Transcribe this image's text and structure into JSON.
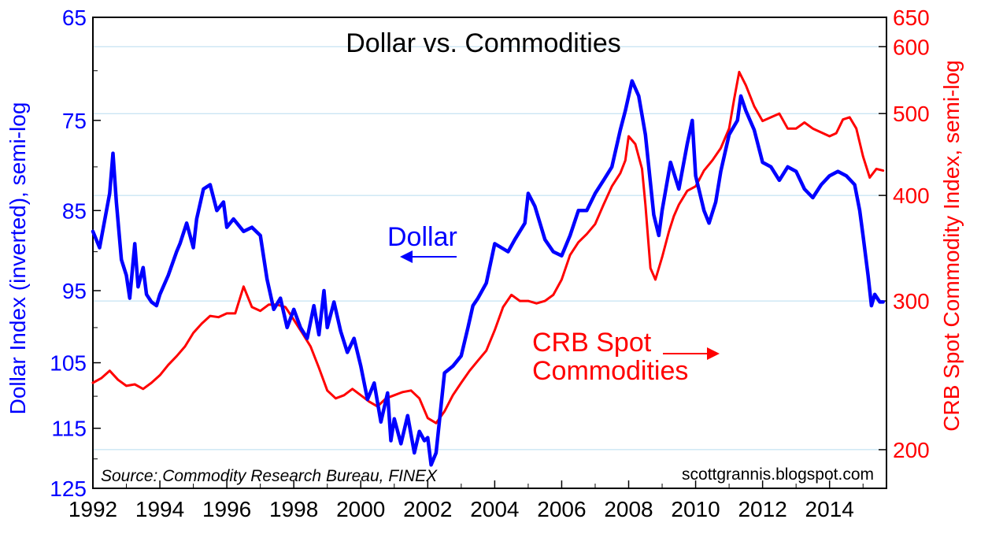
{
  "chart_data": {
    "type": "line",
    "title": "Dollar vs. Commodities",
    "source_note": "Source: Commodity Research Bureau, FINEX",
    "site": "scottgrannis.blogspot.com",
    "x_ticks": [
      "1992",
      "1994",
      "1996",
      "1998",
      "2000",
      "2002",
      "2004",
      "2006",
      "2008",
      "2010",
      "2012",
      "2014"
    ],
    "xlim": [
      1992.0,
      2015.7
    ],
    "grid": true,
    "left_axis": {
      "label": "Dollar Index (inverted), semi-log",
      "inverted": true,
      "scale": "log",
      "lim": [
        65,
        125
      ],
      "ticks": [
        "65",
        "75",
        "85",
        "95",
        "105",
        "115",
        "125"
      ],
      "color": "#0000ff"
    },
    "right_axis": {
      "label": "CRB Spot Commodity Index, semi-log",
      "scale": "log",
      "lim": [
        180,
        650
      ],
      "ticks": [
        "200",
        "300",
        "400",
        "500",
        "600",
        "650"
      ],
      "color": "#ff0000"
    },
    "annotations": [
      {
        "text": "Dollar",
        "color": "#0000ff",
        "arrow": "left"
      },
      {
        "text_line1": "CRB Spot",
        "text_line2": "Commodities",
        "color": "#ff0000",
        "arrow": "right"
      }
    ],
    "series": [
      {
        "name": "Dollar",
        "axis": "left",
        "color": "#0000ff",
        "x": [
          1992.0,
          1992.2,
          1992.5,
          1992.6,
          1992.7,
          1992.85,
          1993.0,
          1993.1,
          1993.25,
          1993.35,
          1993.5,
          1993.6,
          1993.75,
          1993.9,
          1994.0,
          1994.25,
          1994.5,
          1994.6,
          1994.8,
          1995.0,
          1995.1,
          1995.3,
          1995.5,
          1995.7,
          1995.9,
          1996.0,
          1996.2,
          1996.5,
          1996.75,
          1997.0,
          1997.2,
          1997.4,
          1997.6,
          1997.8,
          1998.0,
          1998.2,
          1998.4,
          1998.6,
          1998.75,
          1998.9,
          1999.0,
          1999.2,
          1999.4,
          1999.6,
          1999.8,
          2000.0,
          2000.2,
          2000.4,
          2000.6,
          2000.8,
          2000.9,
          2001.0,
          2001.2,
          2001.4,
          2001.6,
          2001.75,
          2001.9,
          2002.0,
          2002.1,
          2002.25,
          2002.5,
          2002.75,
          2003.0,
          2003.2,
          2003.35,
          2003.5,
          2003.75,
          2004.0,
          2004.2,
          2004.4,
          2004.6,
          2004.9,
          2005.0,
          2005.2,
          2005.5,
          2005.75,
          2006.0,
          2006.25,
          2006.5,
          2006.75,
          2007.0,
          2007.25,
          2007.5,
          2007.75,
          2007.9,
          2008.1,
          2008.3,
          2008.5,
          2008.75,
          2008.9,
          2009.0,
          2009.25,
          2009.5,
          2009.75,
          2009.9,
          2010.0,
          2010.25,
          2010.4,
          2010.6,
          2010.75,
          2011.0,
          2011.25,
          2011.35,
          2011.5,
          2011.75,
          2012.0,
          2012.25,
          2012.5,
          2012.75,
          2013.0,
          2013.25,
          2013.5,
          2013.75,
          2014.0,
          2014.25,
          2014.5,
          2014.75,
          2014.9,
          2015.0,
          2015.15,
          2015.25,
          2015.35,
          2015.5,
          2015.6
        ],
        "values": [
          87.5,
          89.5,
          83.0,
          78.5,
          84.0,
          91.0,
          93.0,
          96.0,
          89.0,
          94.5,
          92.0,
          95.5,
          96.5,
          97.0,
          95.5,
          93.0,
          90.0,
          89.0,
          86.5,
          89.5,
          86.0,
          82.5,
          82.0,
          85.0,
          84.0,
          87.0,
          86.0,
          87.5,
          87.0,
          88.0,
          93.5,
          97.5,
          96.0,
          100.0,
          97.5,
          100.0,
          101.5,
          97.0,
          101.0,
          95.0,
          100.0,
          96.5,
          100.5,
          103.5,
          101.5,
          105.5,
          110.5,
          108.0,
          114.0,
          109.5,
          117.0,
          113.5,
          117.5,
          113.0,
          119.0,
          115.5,
          117.0,
          116.5,
          121.0,
          119.0,
          106.5,
          105.5,
          104.0,
          100.0,
          97.0,
          96.0,
          94.0,
          89.0,
          89.5,
          90.0,
          88.5,
          86.5,
          83.0,
          84.5,
          88.5,
          90.0,
          90.5,
          88.0,
          85.0,
          85.0,
          83.0,
          81.5,
          80.0,
          76.0,
          74.0,
          71.0,
          72.5,
          76.5,
          85.5,
          88.0,
          85.0,
          79.5,
          82.5,
          77.5,
          75.0,
          81.0,
          85.0,
          86.5,
          84.0,
          80.5,
          76.5,
          75.0,
          72.5,
          74.0,
          76.0,
          79.5,
          80.0,
          81.5,
          80.0,
          80.5,
          82.5,
          83.5,
          82.0,
          81.0,
          80.5,
          81.0,
          82.0,
          85.0,
          88.0,
          93.0,
          97.0,
          95.5,
          96.5,
          96.5
        ]
      },
      {
        "name": "CRB Spot Commodities",
        "axis": "right",
        "color": "#ff0000",
        "x": [
          1992.0,
          1992.25,
          1992.5,
          1992.75,
          1993.0,
          1993.25,
          1993.5,
          1993.75,
          1994.0,
          1994.25,
          1994.5,
          1994.75,
          1995.0,
          1995.25,
          1995.5,
          1995.75,
          1996.0,
          1996.25,
          1996.5,
          1996.75,
          1997.0,
          1997.25,
          1997.5,
          1997.75,
          1998.0,
          1998.25,
          1998.5,
          1998.75,
          1999.0,
          1999.25,
          1999.5,
          1999.75,
          2000.0,
          2000.25,
          2000.5,
          2000.75,
          2001.0,
          2001.25,
          2001.5,
          2001.75,
          2002.0,
          2002.25,
          2002.5,
          2002.75,
          2003.0,
          2003.25,
          2003.5,
          2003.75,
          2004.0,
          2004.25,
          2004.5,
          2004.75,
          2005.0,
          2005.25,
          2005.5,
          2005.75,
          2006.0,
          2006.25,
          2006.5,
          2006.75,
          2007.0,
          2007.25,
          2007.5,
          2007.75,
          2007.9,
          2008.0,
          2008.2,
          2008.4,
          2008.5,
          2008.65,
          2008.8,
          2009.0,
          2009.2,
          2009.35,
          2009.5,
          2009.75,
          2010.0,
          2010.25,
          2010.5,
          2010.75,
          2011.0,
          2011.15,
          2011.3,
          2011.5,
          2011.75,
          2012.0,
          2012.25,
          2012.5,
          2012.75,
          2013.0,
          2013.25,
          2013.5,
          2013.75,
          2014.0,
          2014.2,
          2014.4,
          2014.6,
          2014.8,
          2015.0,
          2015.2,
          2015.4,
          2015.6
        ],
        "values": [
          240,
          243,
          248,
          242,
          238,
          239,
          236,
          240,
          245,
          252,
          258,
          265,
          275,
          282,
          288,
          287,
          290,
          290,
          312,
          295,
          292,
          297,
          297,
          295,
          285,
          275,
          265,
          250,
          235,
          230,
          232,
          236,
          232,
          228,
          225,
          230,
          232,
          234,
          235,
          230,
          218,
          215,
          222,
          232,
          240,
          248,
          255,
          262,
          277,
          295,
          305,
          300,
          300,
          298,
          300,
          305,
          318,
          340,
          352,
          360,
          370,
          390,
          410,
          425,
          440,
          470,
          460,
          430,
          390,
          328,
          318,
          338,
          362,
          378,
          390,
          405,
          410,
          428,
          440,
          455,
          480,
          520,
          560,
          540,
          510,
          490,
          495,
          500,
          480,
          480,
          488,
          480,
          475,
          470,
          474,
          492,
          495,
          480,
          445,
          420,
          430,
          428
        ]
      }
    ]
  }
}
